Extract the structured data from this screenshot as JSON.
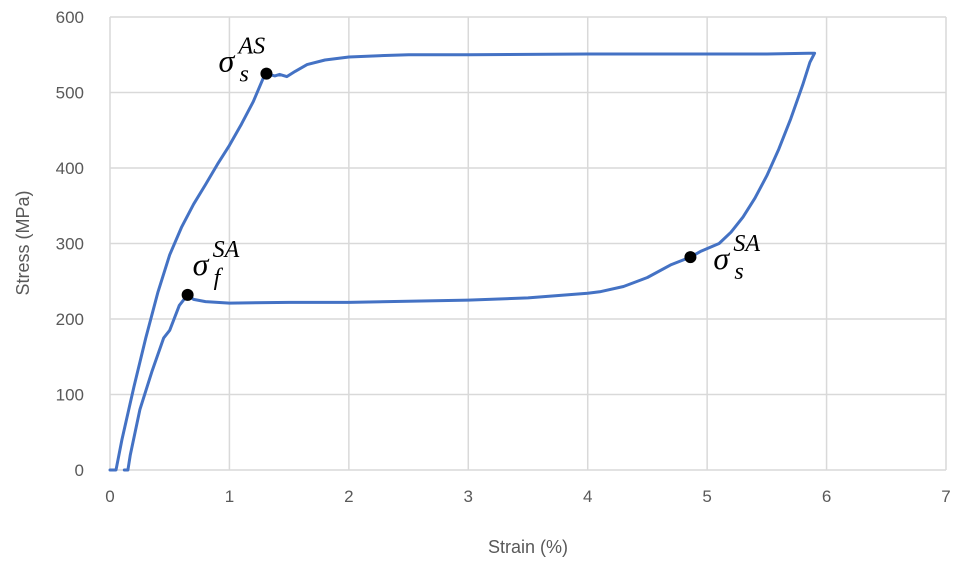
{
  "chart_data": {
    "type": "line",
    "title": "",
    "xlabel": "Strain (%)",
    "ylabel": "Stress (MPa)",
    "xlim": [
      0,
      7
    ],
    "ylim": [
      0,
      600
    ],
    "x_ticks": [
      0,
      1,
      2,
      3,
      4,
      5,
      6,
      7
    ],
    "y_ticks": [
      0,
      100,
      200,
      300,
      400,
      500,
      600
    ],
    "grid": true,
    "series_color": "#4472c4",
    "series": [
      {
        "points": [
          [
            0.0,
            0
          ],
          [
            0.05,
            0
          ],
          [
            0.1,
            40
          ],
          [
            0.2,
            110
          ],
          [
            0.3,
            175
          ],
          [
            0.4,
            235
          ],
          [
            0.5,
            285
          ],
          [
            0.6,
            322
          ],
          [
            0.7,
            352
          ],
          [
            0.8,
            378
          ],
          [
            0.9,
            405
          ],
          [
            1.0,
            430
          ],
          [
            1.1,
            458
          ],
          [
            1.2,
            488
          ],
          [
            1.28,
            518
          ],
          [
            1.31,
            525
          ],
          [
            1.38,
            522
          ],
          [
            1.42,
            524
          ],
          [
            1.48,
            521
          ],
          [
            1.55,
            528
          ],
          [
            1.65,
            537
          ],
          [
            1.8,
            543
          ],
          [
            2.0,
            547
          ],
          [
            2.3,
            549
          ],
          [
            2.5,
            550
          ],
          [
            3.0,
            550
          ],
          [
            4.0,
            551
          ],
          [
            5.0,
            551
          ],
          [
            5.5,
            551
          ],
          [
            5.85,
            552
          ],
          [
            5.9,
            552
          ],
          [
            5.86,
            540
          ],
          [
            5.8,
            510
          ],
          [
            5.7,
            465
          ],
          [
            5.6,
            425
          ],
          [
            5.5,
            390
          ],
          [
            5.4,
            360
          ],
          [
            5.3,
            335
          ],
          [
            5.2,
            315
          ],
          [
            5.1,
            300
          ],
          [
            4.95,
            290
          ],
          [
            4.86,
            282
          ],
          [
            4.7,
            272
          ],
          [
            4.5,
            255
          ],
          [
            4.3,
            243
          ],
          [
            4.1,
            236
          ],
          [
            4.0,
            234
          ],
          [
            3.5,
            228
          ],
          [
            3.0,
            225
          ],
          [
            2.0,
            222
          ],
          [
            1.5,
            222
          ],
          [
            1.0,
            221
          ],
          [
            0.8,
            223
          ],
          [
            0.7,
            226
          ],
          [
            0.65,
            232
          ],
          [
            0.58,
            218
          ],
          [
            0.5,
            185
          ],
          [
            0.45,
            175
          ],
          [
            0.35,
            130
          ],
          [
            0.25,
            80
          ],
          [
            0.17,
            20
          ],
          [
            0.15,
            0
          ],
          [
            0.12,
            0
          ]
        ]
      }
    ],
    "annotations": [
      {
        "symbol": "σ",
        "sup": "AS",
        "sub": "s",
        "x": 1.31,
        "y": 525
      },
      {
        "symbol": "σ",
        "sup": "SA",
        "sub": "f",
        "x": 0.65,
        "y": 232
      },
      {
        "symbol": "σ",
        "sup": "SA",
        "sub": "s",
        "x": 4.86,
        "y": 282
      }
    ]
  }
}
